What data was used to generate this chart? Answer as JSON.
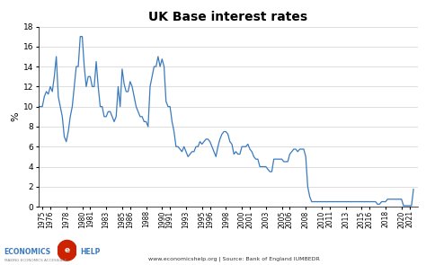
{
  "title": "UK Base interest rates",
  "ylabel": "%",
  "source_text": "www.economicshelp.org | Source: Bank of England IUMBEDR",
  "line_color": "#3a7abf",
  "bg_color": "#ffffff",
  "ylim": [
    0,
    18
  ],
  "yticks": [
    0,
    2,
    4,
    6,
    8,
    10,
    12,
    14,
    16,
    18
  ],
  "xtick_years": [
    1975,
    1976,
    1978,
    1980,
    1981,
    1983,
    1985,
    1986,
    1988,
    1990,
    1991,
    1993,
    1995,
    1996,
    1998,
    2000,
    2001,
    2003,
    2005,
    2006,
    2008,
    2010,
    2011,
    2013,
    2015,
    2016,
    2018,
    2020,
    2021
  ],
  "years": [
    1974.5,
    1975.0,
    1975.25,
    1975.5,
    1975.75,
    1976.0,
    1976.25,
    1976.5,
    1976.75,
    1977.0,
    1977.25,
    1977.5,
    1977.75,
    1978.0,
    1978.25,
    1978.5,
    1978.75,
    1979.0,
    1979.25,
    1979.5,
    1979.75,
    1980.0,
    1980.25,
    1980.5,
    1980.75,
    1981.0,
    1981.25,
    1981.5,
    1981.75,
    1982.0,
    1982.25,
    1982.5,
    1982.75,
    1983.0,
    1983.25,
    1983.5,
    1983.75,
    1984.0,
    1984.25,
    1984.5,
    1984.75,
    1985.0,
    1985.25,
    1985.5,
    1985.75,
    1986.0,
    1986.25,
    1986.5,
    1986.75,
    1987.0,
    1987.25,
    1987.5,
    1987.75,
    1988.0,
    1988.25,
    1988.5,
    1988.75,
    1989.0,
    1989.25,
    1989.5,
    1989.75,
    1990.0,
    1990.25,
    1990.5,
    1990.75,
    1991.0,
    1991.25,
    1991.5,
    1991.75,
    1992.0,
    1992.25,
    1992.5,
    1992.75,
    1993.0,
    1993.25,
    1993.5,
    1993.75,
    1994.0,
    1994.25,
    1994.5,
    1994.75,
    1995.0,
    1995.25,
    1995.5,
    1995.75,
    1996.0,
    1996.25,
    1996.5,
    1996.75,
    1997.0,
    1997.25,
    1997.5,
    1997.75,
    1998.0,
    1998.25,
    1998.5,
    1998.75,
    1999.0,
    1999.25,
    1999.5,
    1999.75,
    2000.0,
    2000.25,
    2000.5,
    2000.75,
    2001.0,
    2001.25,
    2001.5,
    2001.75,
    2002.0,
    2002.25,
    2002.5,
    2002.75,
    2003.0,
    2003.25,
    2003.5,
    2003.75,
    2004.0,
    2004.25,
    2004.5,
    2004.75,
    2005.0,
    2005.25,
    2005.5,
    2005.75,
    2006.0,
    2006.25,
    2006.5,
    2006.75,
    2007.0,
    2007.25,
    2007.5,
    2007.75,
    2008.0,
    2008.25,
    2008.5,
    2008.75,
    2009.0,
    2009.25,
    2009.5,
    2009.75,
    2010.0,
    2010.25,
    2010.5,
    2010.75,
    2011.0,
    2011.25,
    2011.5,
    2011.75,
    2012.0,
    2012.25,
    2012.5,
    2012.75,
    2013.0,
    2013.25,
    2013.5,
    2013.75,
    2014.0,
    2014.25,
    2014.5,
    2014.75,
    2015.0,
    2015.25,
    2015.5,
    2015.75,
    2016.0,
    2016.25,
    2016.5,
    2016.75,
    2017.0,
    2017.25,
    2017.5,
    2017.75,
    2018.0,
    2018.25,
    2018.5,
    2018.75,
    2019.0,
    2019.25,
    2019.5,
    2019.75,
    2020.0,
    2020.25,
    2020.5,
    2020.75,
    2021.0,
    2021.25,
    2021.5
  ],
  "rates": [
    10.0,
    10.0,
    11.0,
    11.5,
    11.25,
    12.0,
    11.5,
    13.0,
    15.0,
    11.0,
    10.0,
    9.0,
    7.0,
    6.5,
    7.5,
    9.0,
    10.0,
    12.0,
    14.0,
    14.0,
    17.0,
    17.0,
    14.0,
    12.0,
    13.0,
    13.0,
    12.0,
    12.0,
    14.5,
    12.0,
    10.0,
    10.0,
    9.0,
    9.0,
    9.5,
    9.5,
    9.0,
    8.5,
    9.0,
    12.0,
    10.0,
    13.75,
    12.25,
    11.5,
    11.5,
    12.5,
    12.0,
    11.0,
    10.0,
    9.5,
    9.0,
    9.0,
    8.5,
    8.5,
    8.0,
    12.0,
    13.0,
    14.0,
    14.0,
    15.0,
    14.0,
    14.75,
    14.0,
    10.5,
    10.0,
    10.0,
    8.5,
    7.5,
    6.0,
    6.0,
    5.75,
    5.5,
    6.0,
    5.5,
    5.0,
    5.25,
    5.5,
    5.5,
    6.0,
    6.0,
    6.5,
    6.25,
    6.5,
    6.75,
    6.75,
    6.5,
    6.0,
    5.5,
    5.0,
    6.0,
    6.75,
    7.25,
    7.5,
    7.5,
    7.25,
    6.5,
    6.25,
    5.25,
    5.5,
    5.25,
    5.25,
    6.0,
    6.0,
    6.0,
    6.25,
    5.75,
    5.5,
    5.0,
    4.75,
    4.75,
    4.0,
    4.0,
    4.0,
    4.0,
    3.75,
    3.5,
    3.5,
    4.75,
    4.75,
    4.75,
    4.75,
    4.75,
    4.5,
    4.5,
    4.5,
    5.25,
    5.5,
    5.75,
    5.75,
    5.5,
    5.75,
    5.75,
    5.75,
    5.0,
    2.0,
    1.0,
    0.5,
    0.5,
    0.5,
    0.5,
    0.5,
    0.5,
    0.5,
    0.5,
    0.5,
    0.5,
    0.5,
    0.5,
    0.5,
    0.5,
    0.5,
    0.5,
    0.5,
    0.5,
    0.5,
    0.5,
    0.5,
    0.5,
    0.5,
    0.5,
    0.5,
    0.5,
    0.5,
    0.5,
    0.5,
    0.5,
    0.5,
    0.5,
    0.5,
    0.25,
    0.25,
    0.5,
    0.5,
    0.5,
    0.75,
    0.75,
    0.75,
    0.75,
    0.75,
    0.75,
    0.75,
    0.75,
    0.1,
    0.1,
    0.1,
    0.1,
    0.1,
    1.75
  ]
}
